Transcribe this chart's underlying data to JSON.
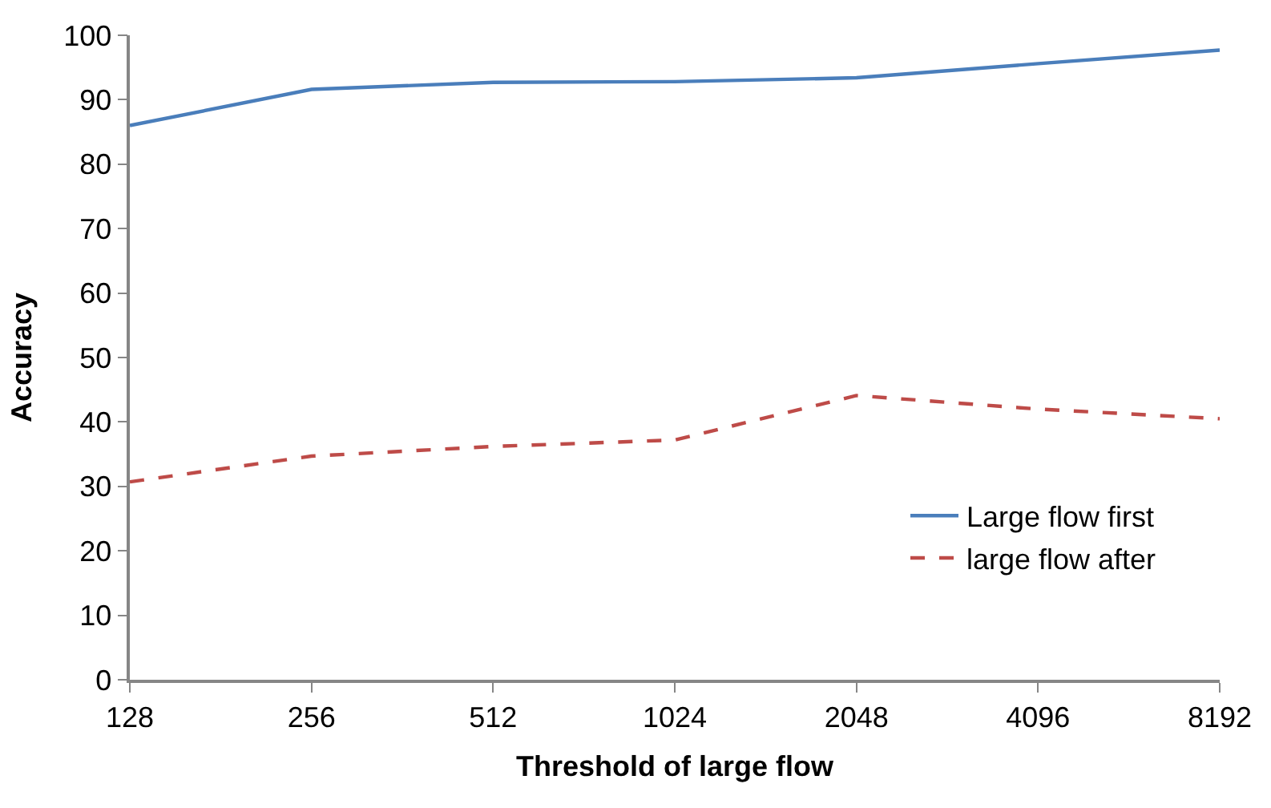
{
  "chart_data": {
    "type": "line",
    "xlabel": "Threshold of large flow",
    "ylabel": "Accuracy",
    "categories": [
      "128",
      "256",
      "512",
      "1024",
      "2048",
      "4096",
      "8192"
    ],
    "series": [
      {
        "name": "Large flow first",
        "color": "#4a7ebb",
        "line_style": "solid",
        "values": [
          86,
          91.6,
          92.7,
          92.8,
          93.4,
          95.6,
          97.7
        ]
      },
      {
        "name": "large flow after",
        "color": "#be4b48",
        "line_style": "dashed",
        "values": [
          30.7,
          34.7,
          36.2,
          37.2,
          44.1,
          42,
          40.5
        ]
      }
    ],
    "ylim": [
      0,
      100
    ],
    "yticks": [
      0,
      10,
      20,
      30,
      40,
      50,
      60,
      70,
      80,
      90,
      100
    ],
    "legend": "bottom right",
    "marker": "none"
  }
}
